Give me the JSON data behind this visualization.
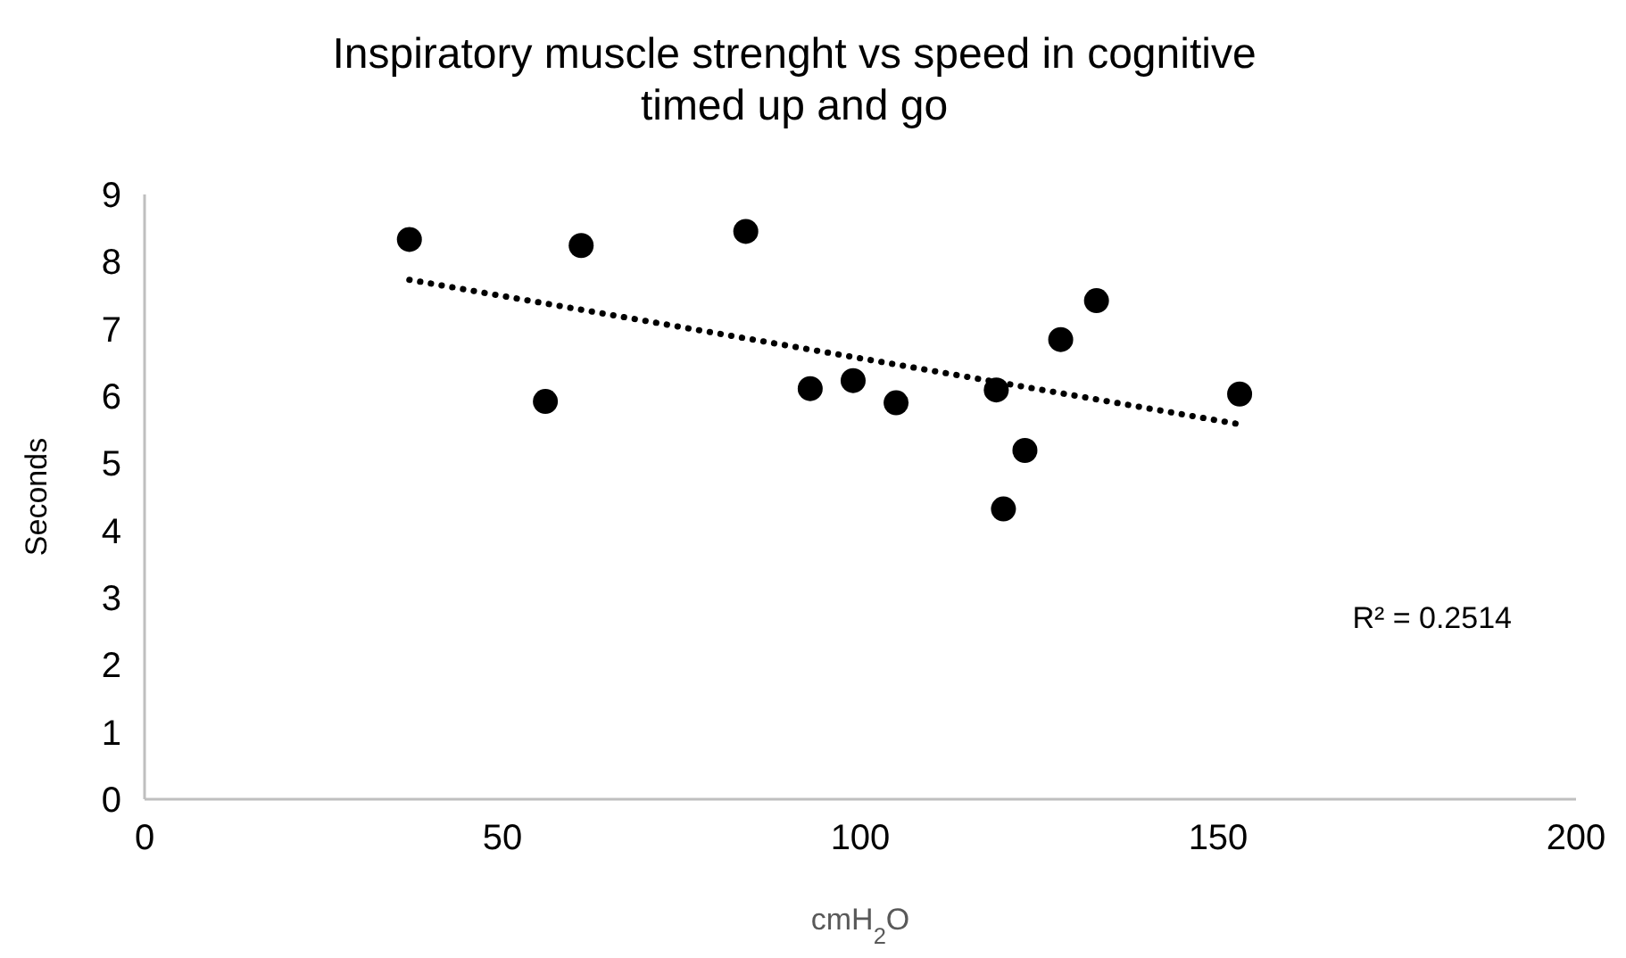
{
  "chart_data": {
    "type": "scatter",
    "title": "Inspiratory muscle strenght vs speed in cognitive timed up and go",
    "xlabel": "cmH$_{2}$O",
    "ylabel": "Seconds",
    "xlim": [
      0,
      200
    ],
    "xticks": [
      0,
      50,
      100,
      150,
      200
    ],
    "ylim": [
      0,
      9
    ],
    "yticks": [
      0,
      1,
      2,
      3,
      4,
      5,
      6,
      7,
      8,
      9
    ],
    "grid": false,
    "series": [
      {
        "color": "#000000",
        "marker": "circle",
        "x": [
          37,
          56,
          61,
          84,
          93,
          99,
          105,
          119,
          120,
          123,
          128,
          133,
          153
        ],
        "values": [
          8.33,
          5.92,
          8.24,
          8.45,
          6.11,
          6.23,
          5.9,
          6.09,
          4.32,
          5.19,
          6.84,
          7.42,
          6.03
        ]
      },
      {
        "type": "line",
        "color": "#000000",
        "line_style": "dotted",
        "marker": "none",
        "x": [
          37,
          153
        ],
        "values": [
          7.73,
          5.58
        ]
      }
    ],
    "annotations": [
      "R² = 0.2514"
    ]
  }
}
